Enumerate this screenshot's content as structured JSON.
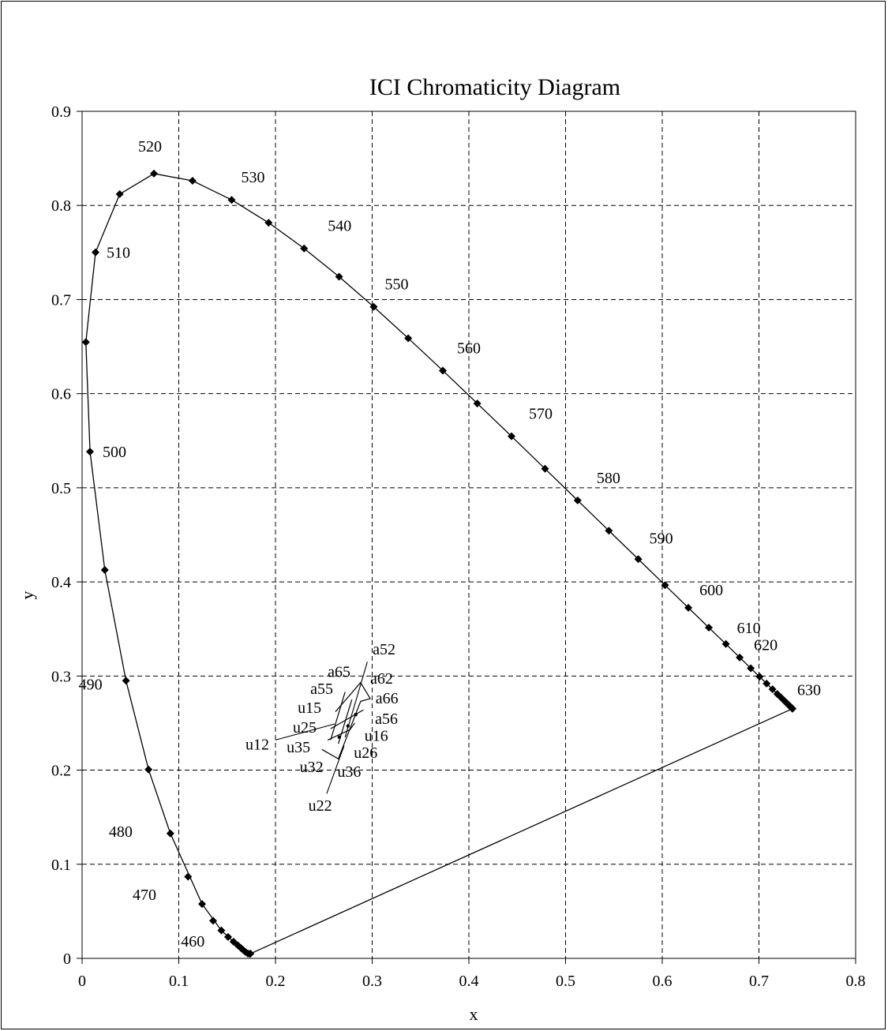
{
  "chart_data": {
    "type": "scatter",
    "title": "ICI Chromaticity Diagram",
    "xlabel": "x",
    "ylabel": "y",
    "xlim": [
      0,
      0.8
    ],
    "ylim": [
      0,
      0.9
    ],
    "grid": true,
    "x_ticks": [
      "0",
      "0.1",
      "0.2",
      "0.3",
      "0.4",
      "0.5",
      "0.6",
      "0.7",
      "0.8"
    ],
    "y_ticks": [
      "0",
      "0.1",
      "0.2",
      "0.3",
      "0.4",
      "0.5",
      "0.6",
      "0.7",
      "0.8",
      "0.9"
    ],
    "spectral_locus": [
      [
        0.1741,
        0.005
      ],
      [
        0.1738,
        0.0049
      ],
      [
        0.1733,
        0.0048
      ],
      [
        0.1726,
        0.0048
      ],
      [
        0.1714,
        0.0051
      ],
      [
        0.1689,
        0.0069
      ],
      [
        0.1644,
        0.0109
      ],
      [
        0.1566,
        0.0177
      ],
      [
        0.144,
        0.0297
      ],
      [
        0.1241,
        0.0578
      ],
      [
        0.0913,
        0.1327
      ],
      [
        0.0687,
        0.2007
      ],
      [
        0.0454,
        0.295
      ],
      [
        0.0235,
        0.4127
      ],
      [
        0.0082,
        0.5384
      ],
      [
        0.0039,
        0.6548
      ],
      [
        0.0139,
        0.7502
      ],
      [
        0.0389,
        0.812
      ],
      [
        0.0743,
        0.8338
      ],
      [
        0.1142,
        0.8262
      ],
      [
        0.1547,
        0.8059
      ],
      [
        0.1929,
        0.7816
      ],
      [
        0.2296,
        0.7543
      ],
      [
        0.2658,
        0.7243
      ],
      [
        0.3016,
        0.6923
      ],
      [
        0.3373,
        0.6589
      ],
      [
        0.3731,
        0.6245
      ],
      [
        0.4087,
        0.5896
      ],
      [
        0.4441,
        0.5547
      ],
      [
        0.4788,
        0.5202
      ],
      [
        0.5125,
        0.4866
      ],
      [
        0.5448,
        0.4544
      ],
      [
        0.5752,
        0.4242
      ],
      [
        0.6029,
        0.3965
      ],
      [
        0.627,
        0.3725
      ],
      [
        0.6482,
        0.3514
      ],
      [
        0.6658,
        0.334
      ],
      [
        0.6801,
        0.3197
      ],
      [
        0.6915,
        0.3083
      ],
      [
        0.7006,
        0.2993
      ],
      [
        0.7079,
        0.292
      ],
      [
        0.714,
        0.2859
      ],
      [
        0.719,
        0.2809
      ],
      [
        0.723,
        0.277
      ],
      [
        0.726,
        0.274
      ],
      [
        0.7283,
        0.2717
      ],
      [
        0.73,
        0.27
      ],
      [
        0.7311,
        0.2689
      ],
      [
        0.732,
        0.268
      ],
      [
        0.7327,
        0.2673
      ],
      [
        0.7334,
        0.2666
      ],
      [
        0.734,
        0.266
      ],
      [
        0.7344,
        0.2656
      ],
      [
        0.7346,
        0.2654
      ],
      [
        0.7347,
        0.2653
      ]
    ],
    "locus_markers": [
      [
        0.1741,
        0.005
      ],
      [
        0.1733,
        0.0048
      ],
      [
        0.1714,
        0.0051
      ],
      [
        0.1689,
        0.0069
      ],
      [
        0.1666,
        0.0089
      ],
      [
        0.1644,
        0.0109
      ],
      [
        0.1611,
        0.0138
      ],
      [
        0.1566,
        0.0177
      ],
      [
        0.151,
        0.0227
      ],
      [
        0.144,
        0.0297
      ],
      [
        0.1355,
        0.0399
      ],
      [
        0.1241,
        0.0578
      ],
      [
        0.1096,
        0.0868
      ],
      [
        0.0913,
        0.1327
      ],
      [
        0.0687,
        0.2007
      ],
      [
        0.0454,
        0.295
      ],
      [
        0.0235,
        0.4127
      ],
      [
        0.0082,
        0.5384
      ],
      [
        0.0039,
        0.6548
      ],
      [
        0.0139,
        0.7502
      ],
      [
        0.0389,
        0.812
      ],
      [
        0.0743,
        0.8338
      ],
      [
        0.1142,
        0.8262
      ],
      [
        0.1547,
        0.8059
      ],
      [
        0.1929,
        0.7816
      ],
      [
        0.2296,
        0.7543
      ],
      [
        0.2658,
        0.7243
      ],
      [
        0.3016,
        0.6923
      ],
      [
        0.3373,
        0.6589
      ],
      [
        0.3731,
        0.6245
      ],
      [
        0.4087,
        0.5896
      ],
      [
        0.4441,
        0.5547
      ],
      [
        0.4788,
        0.5202
      ],
      [
        0.5125,
        0.4866
      ],
      [
        0.5448,
        0.4544
      ],
      [
        0.5752,
        0.4242
      ],
      [
        0.6029,
        0.3965
      ],
      [
        0.627,
        0.3725
      ],
      [
        0.6482,
        0.3514
      ],
      [
        0.6658,
        0.334
      ],
      [
        0.6801,
        0.3197
      ],
      [
        0.6915,
        0.3083
      ],
      [
        0.7006,
        0.2993
      ],
      [
        0.7079,
        0.292
      ],
      [
        0.714,
        0.2859
      ],
      [
        0.719,
        0.2809
      ],
      [
        0.723,
        0.277
      ],
      [
        0.726,
        0.274
      ],
      [
        0.7283,
        0.2717
      ],
      [
        0.73,
        0.27
      ],
      [
        0.7311,
        0.2689
      ],
      [
        0.732,
        0.268
      ],
      [
        0.7327,
        0.2673
      ],
      [
        0.7334,
        0.2666
      ],
      [
        0.734,
        0.266
      ],
      [
        0.7344,
        0.2656
      ],
      [
        0.7346,
        0.2654
      ],
      [
        0.7347,
        0.2653
      ]
    ],
    "purple_line": [
      [
        0.1741,
        0.005
      ],
      [
        0.7347,
        0.2653
      ]
    ],
    "wavelength_labels": [
      {
        "text": "460",
        "x": 0.1741,
        "y": 0.005
      },
      {
        "text": "470",
        "x": 0.1241,
        "y": 0.0578
      },
      {
        "text": "480",
        "x": 0.0913,
        "y": 0.1327
      },
      {
        "text": "490",
        "x": 0.0454,
        "y": 0.295
      },
      {
        "text": "500",
        "x": 0.0082,
        "y": 0.5384
      },
      {
        "text": "510",
        "x": 0.0139,
        "y": 0.7502
      },
      {
        "text": "520",
        "x": 0.0743,
        "y": 0.8338
      },
      {
        "text": "530",
        "x": 0.1547,
        "y": 0.8059
      },
      {
        "text": "540",
        "x": 0.2296,
        "y": 0.7543
      },
      {
        "text": "550",
        "x": 0.3016,
        "y": 0.6923
      },
      {
        "text": "560",
        "x": 0.3731,
        "y": 0.6245
      },
      {
        "text": "570",
        "x": 0.4441,
        "y": 0.5547
      },
      {
        "text": "580",
        "x": 0.5125,
        "y": 0.4866
      },
      {
        "text": "590",
        "x": 0.5752,
        "y": 0.4242
      },
      {
        "text": "600",
        "x": 0.627,
        "y": 0.3725
      },
      {
        "text": "610",
        "x": 0.6658,
        "y": 0.334
      },
      {
        "text": "620",
        "x": 0.6915,
        "y": 0.3083
      },
      {
        "text": "630",
        "x": 0.7347,
        "y": 0.2653
      }
    ],
    "cells": [
      [
        [
          0.248,
          0.222
        ],
        [
          0.265,
          0.212
        ],
        [
          0.288,
          0.273
        ],
        [
          0.298,
          0.276
        ],
        [
          0.288,
          0.293
        ],
        [
          0.262,
          0.262
        ]
      ],
      [
        [
          0.254,
          0.232
        ],
        [
          0.277,
          0.243
        ],
        [
          0.282,
          0.25
        ]
      ],
      [
        [
          0.257,
          0.244
        ],
        [
          0.291,
          0.264
        ]
      ],
      [
        [
          0.279,
          0.275
        ],
        [
          0.265,
          0.228
        ]
      ],
      [
        [
          0.272,
          0.283
        ],
        [
          0.257,
          0.232
        ]
      ]
    ],
    "cell_points": [
      [
        0.266,
        0.235
      ],
      [
        0.275,
        0.247
      ],
      [
        0.283,
        0.259
      ]
    ],
    "leader_lines": [
      [
        [
          0.272,
          0.235
        ],
        [
          0.295,
          0.315
        ]
      ],
      [
        [
          0.271,
          0.226
        ],
        [
          0.253,
          0.175
        ]
      ],
      [
        [
          0.261,
          0.249
        ],
        [
          0.2,
          0.232
        ]
      ]
    ],
    "cell_labels": [
      {
        "text": "a52",
        "x": 0.3005,
        "y": 0.323
      },
      {
        "text": "a65",
        "x": 0.254,
        "y": 0.299
      },
      {
        "text": "a62",
        "x": 0.298,
        "y": 0.292
      },
      {
        "text": "a55",
        "x": 0.236,
        "y": 0.281
      },
      {
        "text": "a66",
        "x": 0.3035,
        "y": 0.271
      },
      {
        "text": "u15",
        "x": 0.223,
        "y": 0.261
      },
      {
        "text": "a56",
        "x": 0.303,
        "y": 0.249
      },
      {
        "text": "u25",
        "x": 0.218,
        "y": 0.24
      },
      {
        "text": "u16",
        "x": 0.292,
        "y": 0.231
      },
      {
        "text": "u12",
        "x": 0.169,
        "y": 0.222
      },
      {
        "text": "u35",
        "x": 0.2115,
        "y": 0.219
      },
      {
        "text": "u26",
        "x": 0.281,
        "y": 0.213
      },
      {
        "text": "u32",
        "x": 0.225,
        "y": 0.198
      },
      {
        "text": "u36",
        "x": 0.264,
        "y": 0.193
      },
      {
        "text": "u22",
        "x": 0.234,
        "y": 0.157
      }
    ]
  }
}
